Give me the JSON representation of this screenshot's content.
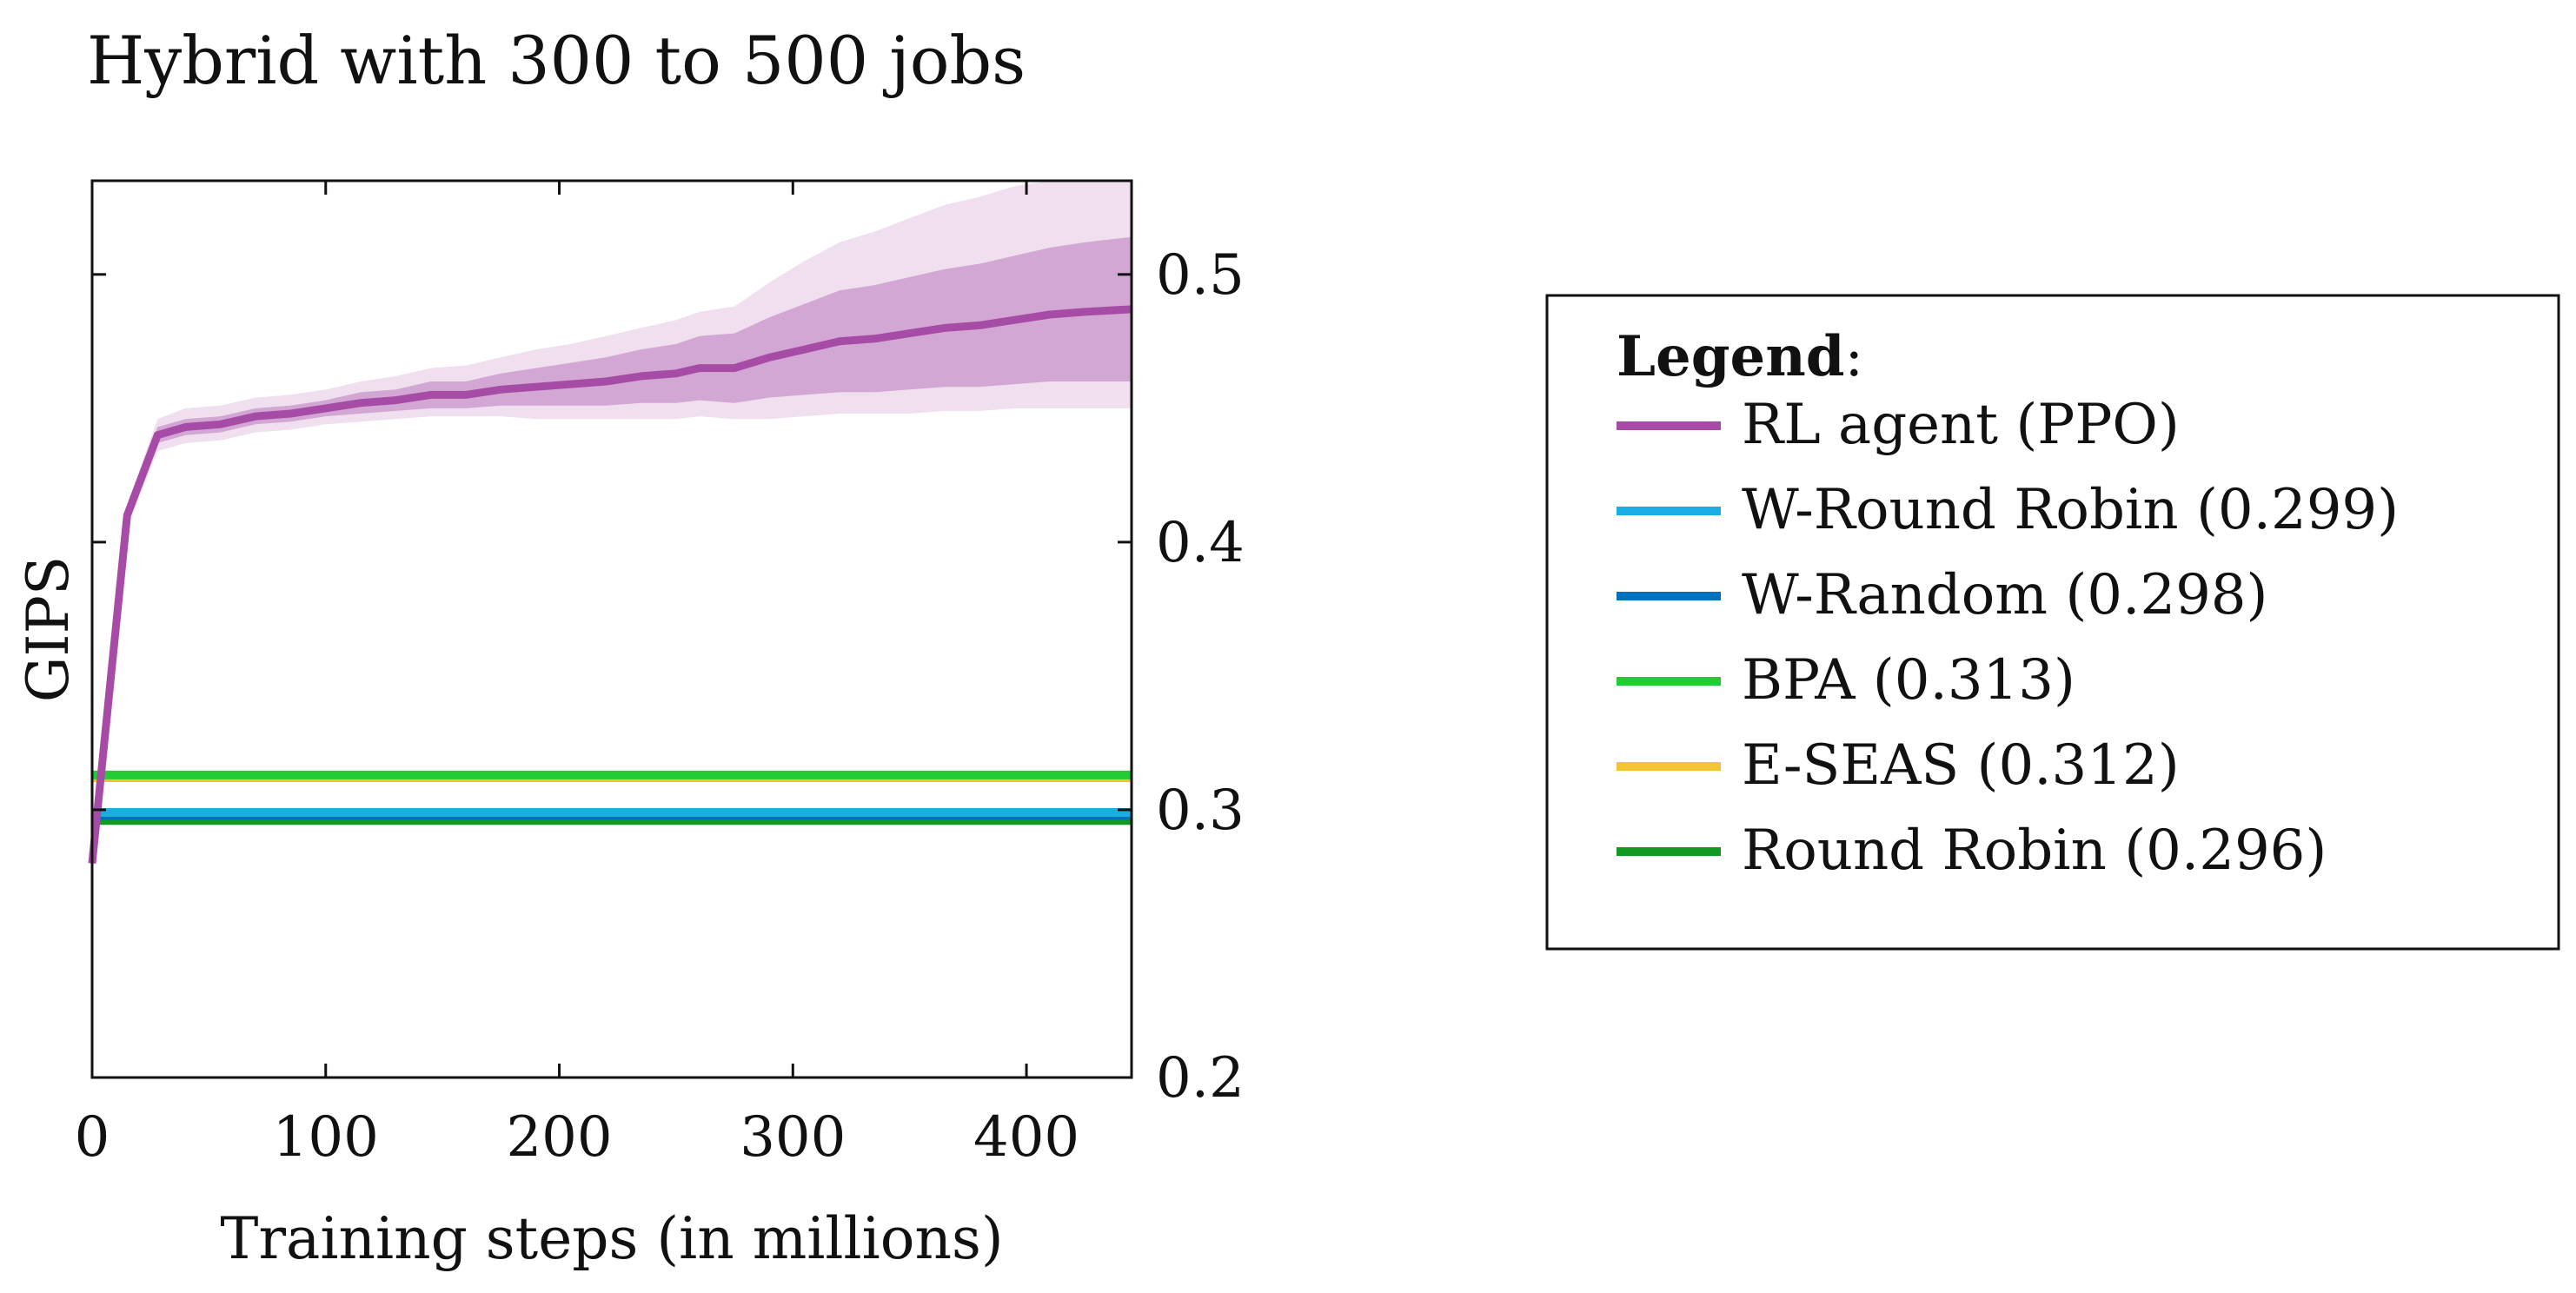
{
  "chart_data": {
    "type": "line",
    "title": "Hybrid with 300 to 500 jobs",
    "xlabel": "Training steps (in millions)",
    "ylabel": "GIPS",
    "xlim": [
      0,
      445
    ],
    "ylim": [
      0.2,
      0.535
    ],
    "xticks": [
      0,
      100,
      200,
      300,
      400
    ],
    "yticks": [
      0.2,
      0.3,
      0.4,
      0.5
    ],
    "ytick_labels": [
      "0.2",
      "0.3",
      "0.4",
      "0.5"
    ],
    "grid": false,
    "y_axis_side": "right",
    "legend_position": "right",
    "legend_title": "Legend",
    "series": [
      {
        "name": "RL agent (PPO)",
        "color": "#a64ca6",
        "x": [
          0,
          15,
          28,
          40,
          55,
          70,
          85,
          100,
          115,
          130,
          145,
          160,
          175,
          190,
          205,
          220,
          235,
          250,
          260,
          275,
          290,
          305,
          320,
          335,
          350,
          365,
          380,
          395,
          410,
          425,
          445
        ],
        "values": [
          0.28,
          0.41,
          0.44,
          0.443,
          0.444,
          0.447,
          0.448,
          0.45,
          0.452,
          0.453,
          0.455,
          0.455,
          0.457,
          0.458,
          0.459,
          0.46,
          0.462,
          0.463,
          0.465,
          0.465,
          0.469,
          0.472,
          0.475,
          0.476,
          0.478,
          0.48,
          0.481,
          0.483,
          0.485,
          0.486,
          0.487
        ],
        "band_inner_lower": [
          0.28,
          0.408,
          0.437,
          0.44,
          0.441,
          0.444,
          0.445,
          0.447,
          0.448,
          0.449,
          0.45,
          0.45,
          0.451,
          0.451,
          0.451,
          0.451,
          0.452,
          0.452,
          0.453,
          0.452,
          0.454,
          0.455,
          0.456,
          0.456,
          0.457,
          0.458,
          0.458,
          0.459,
          0.46,
          0.46,
          0.46
        ],
        "band_inner_upper": [
          0.28,
          0.412,
          0.443,
          0.446,
          0.447,
          0.45,
          0.451,
          0.453,
          0.456,
          0.457,
          0.46,
          0.46,
          0.463,
          0.465,
          0.467,
          0.469,
          0.472,
          0.474,
          0.477,
          0.478,
          0.484,
          0.489,
          0.494,
          0.496,
          0.499,
          0.502,
          0.504,
          0.507,
          0.51,
          0.512,
          0.514
        ],
        "band_outer_lower": [
          0.28,
          0.406,
          0.434,
          0.437,
          0.438,
          0.441,
          0.442,
          0.444,
          0.445,
          0.446,
          0.447,
          0.447,
          0.447,
          0.446,
          0.446,
          0.446,
          0.446,
          0.446,
          0.447,
          0.446,
          0.446,
          0.447,
          0.448,
          0.448,
          0.448,
          0.449,
          0.449,
          0.45,
          0.45,
          0.45,
          0.45
        ],
        "band_outer_upper": [
          0.28,
          0.414,
          0.446,
          0.45,
          0.451,
          0.454,
          0.455,
          0.457,
          0.46,
          0.462,
          0.465,
          0.466,
          0.469,
          0.472,
          0.474,
          0.477,
          0.48,
          0.483,
          0.486,
          0.488,
          0.497,
          0.505,
          0.512,
          0.516,
          0.521,
          0.526,
          0.529,
          0.533,
          0.537,
          0.539,
          0.541
        ]
      },
      {
        "name": "W-Round Robin (0.299)",
        "color": "#1aade4",
        "value": 0.299
      },
      {
        "name": "W-Random (0.298)",
        "color": "#0072bd",
        "value": 0.298
      },
      {
        "name": "BPA (0.313)",
        "color": "#22cc33",
        "value": 0.313
      },
      {
        "name": "E-SEAS (0.312)",
        "color": "#f5c431",
        "value": 0.312
      },
      {
        "name": "Round Robin (0.296)",
        "color": "#119922",
        "value": 0.296
      }
    ]
  }
}
